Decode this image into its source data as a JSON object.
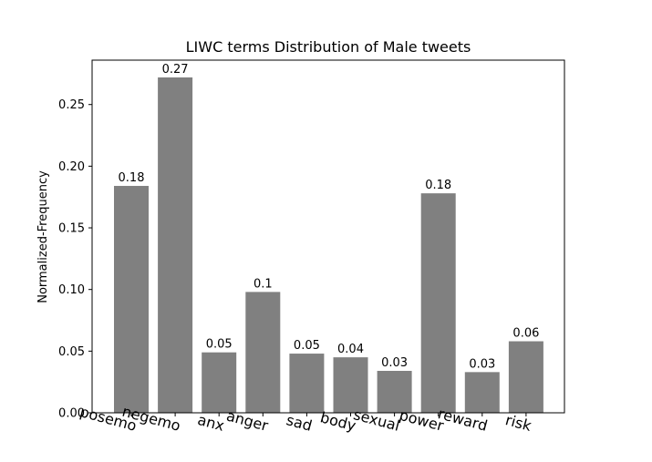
{
  "chart_data": {
    "type": "bar",
    "title": "LIWC terms Distribution of Male tweets",
    "xlabel": "",
    "ylabel": "Normalized-Frequency",
    "categories": [
      "posemo",
      "negemo",
      "anx",
      "anger",
      "sad",
      "body",
      "sexual",
      "power",
      "reward",
      "risk"
    ],
    "values": [
      0.184,
      0.272,
      0.049,
      0.098,
      0.048,
      0.045,
      0.034,
      0.178,
      0.033,
      0.058
    ],
    "data_labels": [
      "0.18",
      "0.27",
      "0.05",
      "0.1",
      "0.05",
      "0.04",
      "0.03",
      "0.18",
      "0.03",
      "0.06"
    ],
    "ylim": [
      0,
      0.286
    ],
    "yticks": [
      0.0,
      0.05,
      0.1,
      0.15,
      0.2,
      0.25
    ],
    "ytick_labels": [
      "0.00",
      "0.05",
      "0.10",
      "0.15",
      "0.20",
      "0.25"
    ],
    "bar_color": "#808080",
    "grid": false,
    "legend": "none"
  }
}
